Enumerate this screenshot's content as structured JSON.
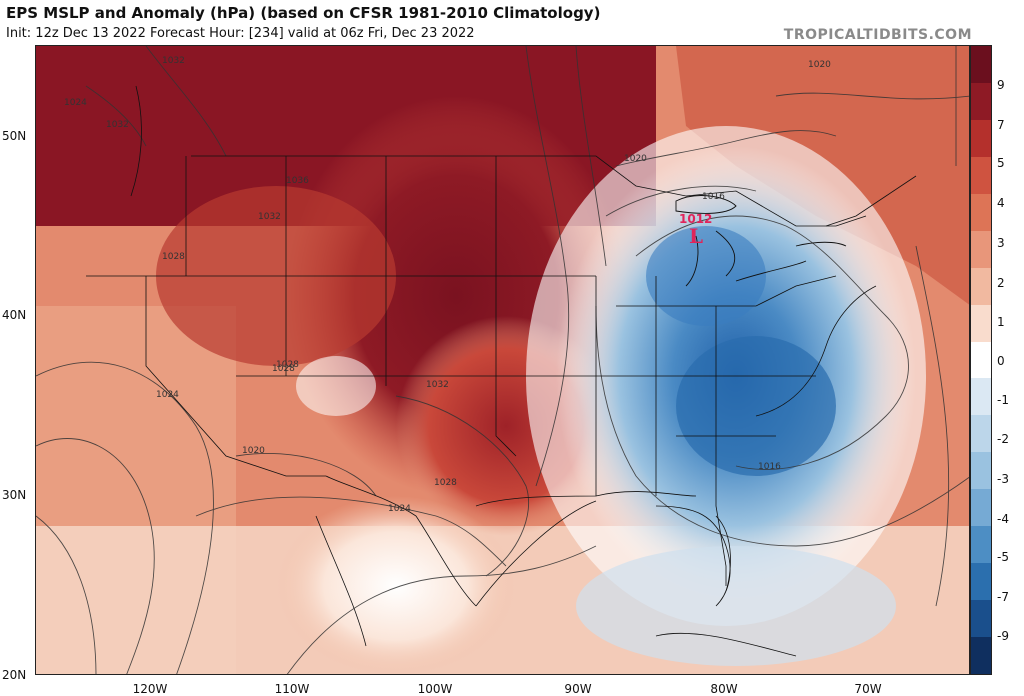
{
  "header": {
    "title": "EPS MSLP and Anomaly (hPa) (based on CFSR 1981-2010 Climatology)",
    "subtitle": "Init: 12z Dec 13 2022   Forecast Hour: [234]   valid at 06z Fri, Dec 23 2022",
    "watermark": "TROPICALTIDBITS.COM"
  },
  "map": {
    "lat_labels": [
      "50N",
      "40N",
      "30N",
      "20N"
    ],
    "lon_labels": [
      "120W",
      "110W",
      "100W",
      "90W",
      "80W",
      "70W"
    ],
    "low_center": {
      "symbol": "L",
      "pressure": "1012"
    },
    "isobar_labels": [
      "1032",
      "1024",
      "1032",
      "1036",
      "1032",
      "1028",
      "1028",
      "1028",
      "1024",
      "1020",
      "1020",
      "1020",
      "1016",
      "1016",
      "1032",
      "1028",
      "1024"
    ]
  },
  "colorbar": {
    "labels": [
      "9",
      "7",
      "5",
      "4",
      "3",
      "2",
      "1",
      "0",
      "-1",
      "-2",
      "-3",
      "-4",
      "-5",
      "-7",
      "-9"
    ],
    "colors": [
      "#6b0f1e",
      "#8e1a25",
      "#b4302c",
      "#cf5340",
      "#dd7456",
      "#e8967a",
      "#f1b9a0",
      "#f9dccd",
      "#ffffff",
      "#dbe8f3",
      "#bcd6ea",
      "#9ac2e0",
      "#76aad4",
      "#4d8ec4",
      "#2b6fae",
      "#1a4f8c",
      "#0f2f5f"
    ]
  }
}
